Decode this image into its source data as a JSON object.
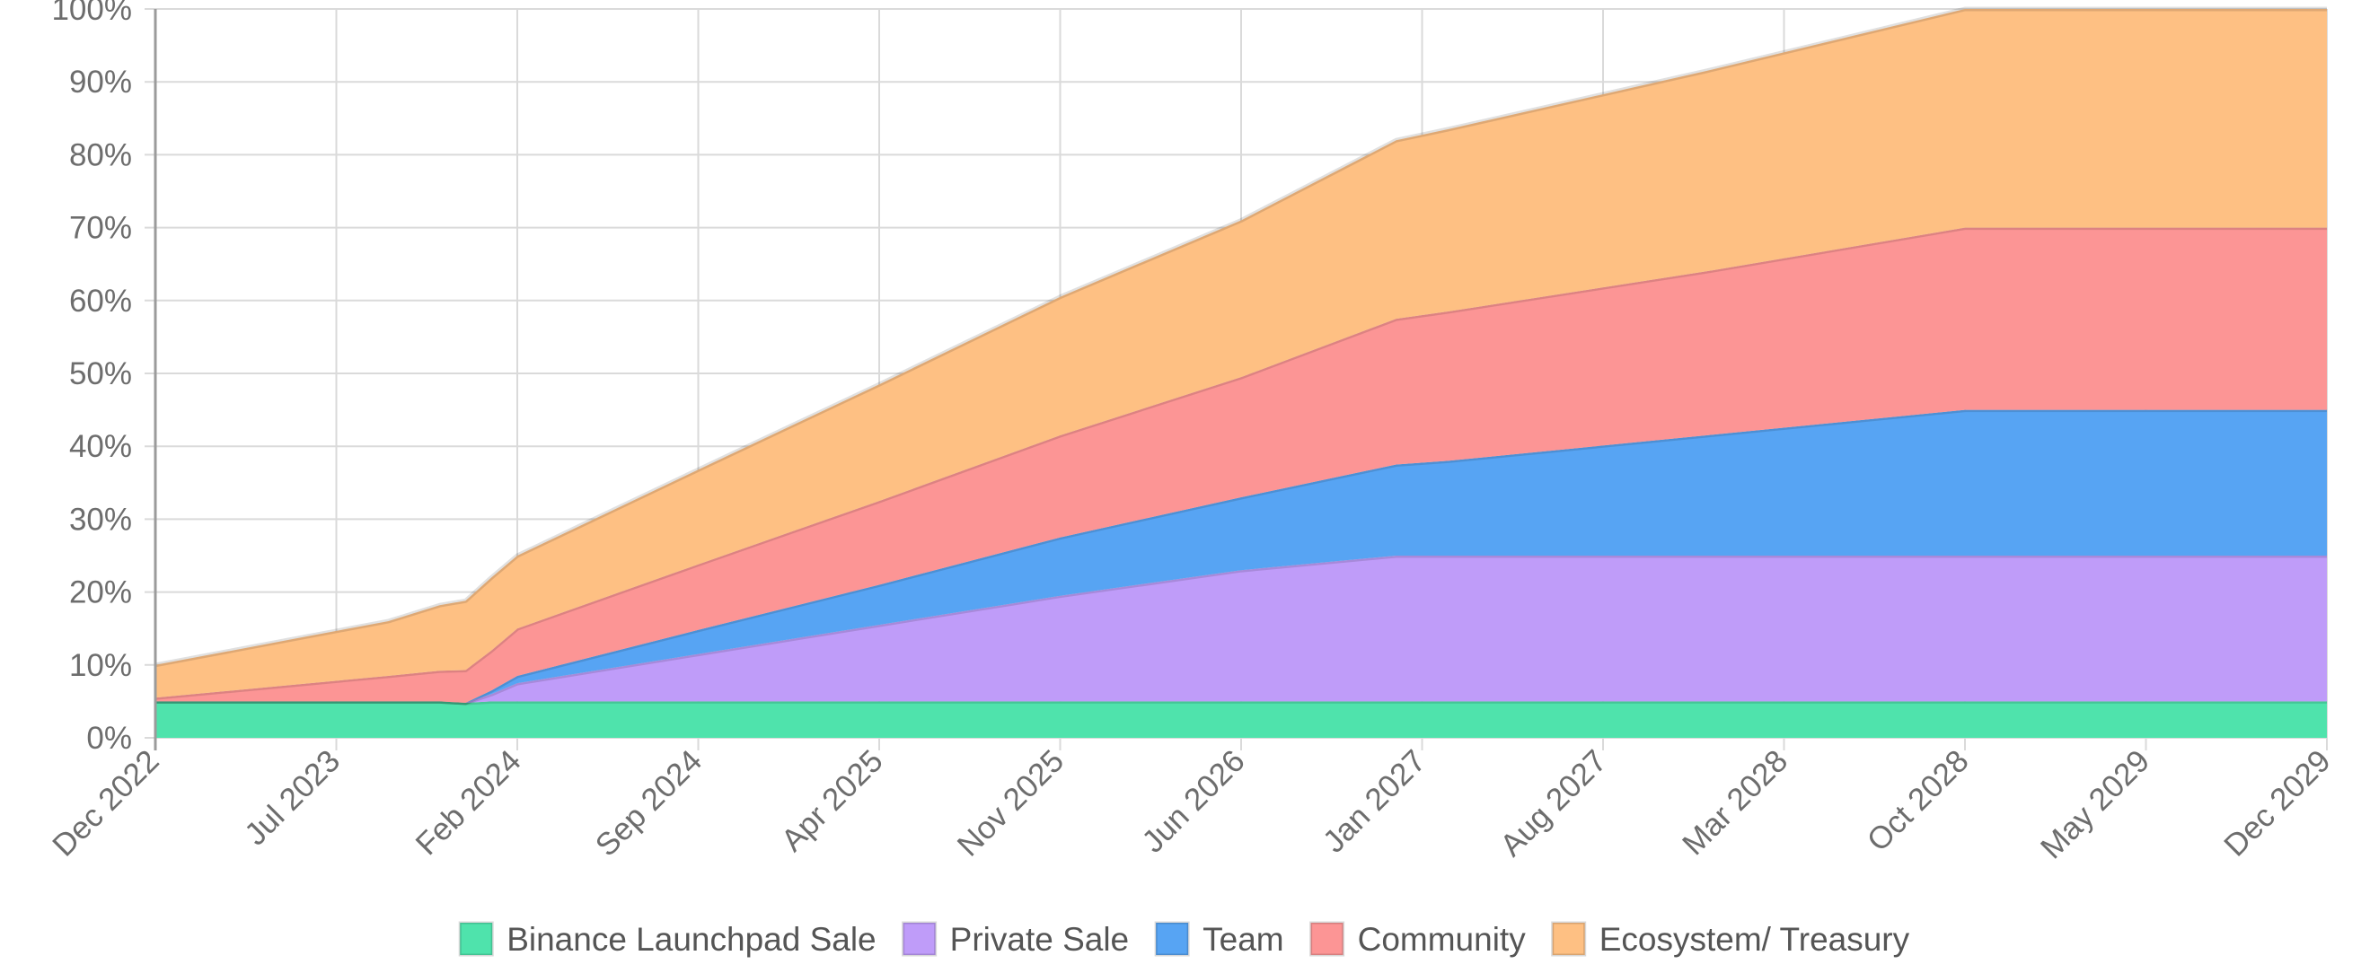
{
  "chart_data": {
    "type": "area",
    "stacked": true,
    "title": "",
    "xlabel": "",
    "ylabel": "",
    "ylim": [
      0,
      100
    ],
    "y_ticks": [
      0,
      10,
      20,
      30,
      40,
      50,
      60,
      70,
      80,
      90,
      100
    ],
    "y_tick_labels": [
      "0%",
      "10%",
      "20%",
      "30%",
      "40%",
      "50%",
      "60%",
      "70%",
      "80%",
      "90%",
      "100%"
    ],
    "grid": true,
    "legend_position": "bottom-center",
    "x_tick_labels": [
      "Dec 2022",
      "Jul 2023",
      "Feb 2024",
      "Sep 2024",
      "Apr 2025",
      "Nov 2025",
      "Jun 2026",
      "Jan 2027",
      "Aug 2027",
      "Mar 2028",
      "Oct 2028",
      "May 2029",
      "Dec 2029"
    ],
    "x_months": [
      0,
      3,
      6,
      9,
      11,
      12,
      13,
      14,
      21,
      28,
      35,
      42,
      48,
      50,
      60,
      70,
      84
    ],
    "series": [
      {
        "name": "Binance Launchpad Sale",
        "color": "#4fe3ac",
        "values": [
          5,
          5,
          5,
          5,
          5,
          4.8,
          5,
          5,
          5,
          5,
          5,
          5,
          5,
          5,
          5,
          5,
          5
        ]
      },
      {
        "name": "Private Sale",
        "color": "#bf9cf9",
        "values": [
          0,
          0,
          0,
          0,
          0,
          0,
          1,
          2.5,
          6.5,
          10.5,
          14.5,
          18,
          20,
          20,
          20,
          20,
          20
        ]
      },
      {
        "name": "Team",
        "color": "#57a4f3",
        "values": [
          0,
          0,
          0,
          0,
          0,
          0,
          0.5,
          1,
          3.3,
          5.5,
          8,
          10,
          12.5,
          13,
          16.5,
          20,
          20
        ]
      },
      {
        "name": "Community",
        "color": "#fc9595",
        "values": [
          0.5,
          1.5,
          2.5,
          3.5,
          4.2,
          4.5,
          5.5,
          6.5,
          9,
          11.5,
          14,
          16.5,
          20,
          20.5,
          22.5,
          25,
          25
        ]
      },
      {
        "name": "Ecosystem/ Treasury",
        "color": "#fec083",
        "values": [
          4.5,
          5.5,
          6.5,
          7.5,
          9,
          9.5,
          10,
          10,
          13,
          16,
          19,
          21.5,
          24.5,
          25,
          27.5,
          30,
          30
        ]
      }
    ]
  }
}
